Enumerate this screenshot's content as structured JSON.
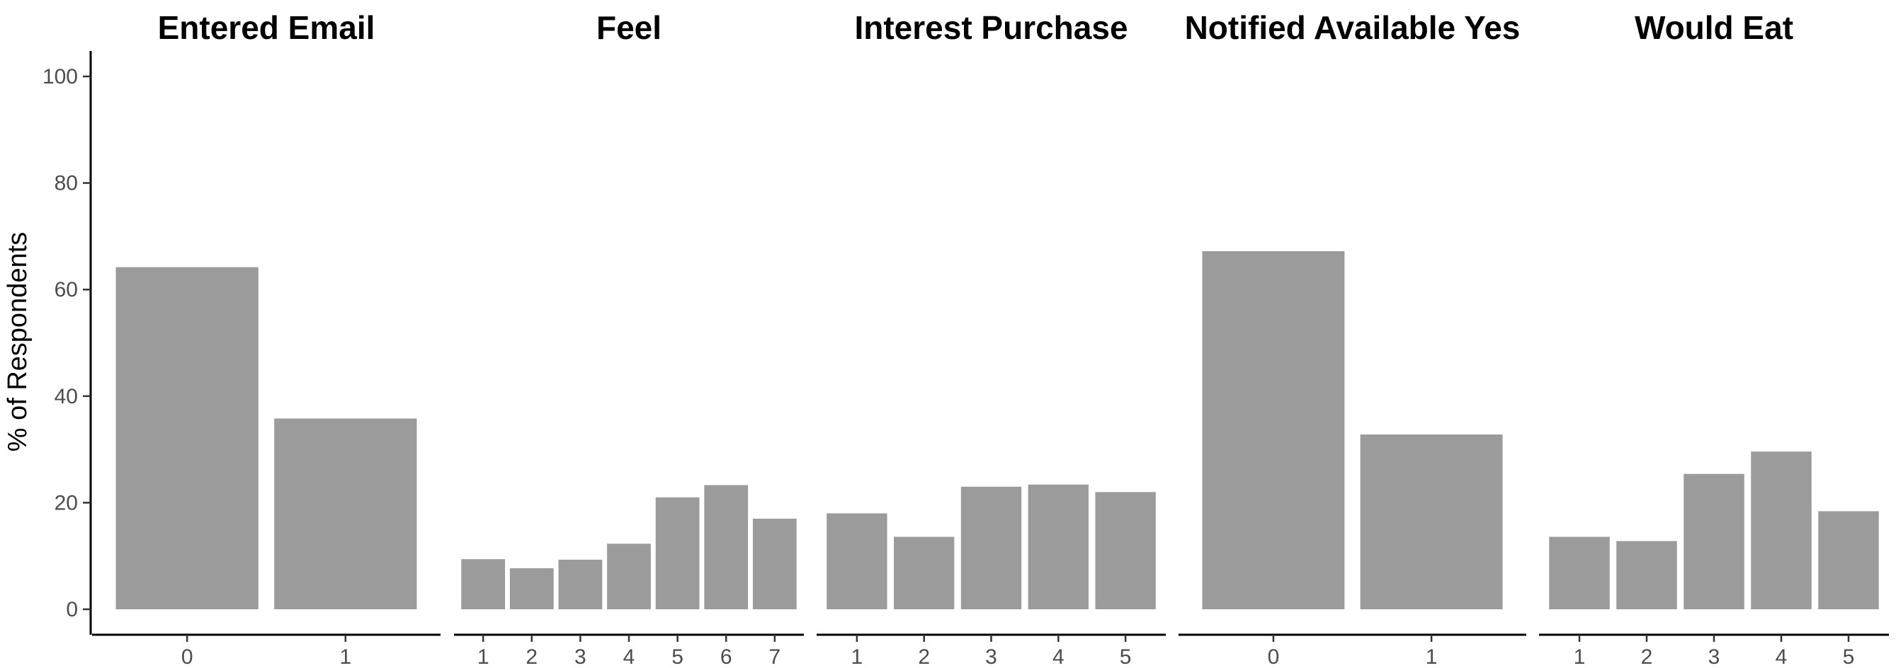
{
  "chart_data": {
    "type": "bar",
    "ylabel": "% of Respondents",
    "ylim": [
      0,
      100
    ],
    "y_ticks": [
      "0",
      "20",
      "40",
      "60",
      "80",
      "100"
    ],
    "bar_color": "#9b9b9b",
    "grid": false,
    "facets": [
      {
        "title": "Entered Email",
        "categories": [
          "0",
          "1"
        ],
        "values": [
          64.2,
          35.8
        ]
      },
      {
        "title": "Feel",
        "categories": [
          "1",
          "2",
          "3",
          "4",
          "5",
          "6",
          "7"
        ],
        "values": [
          9.4,
          7.7,
          9.3,
          12.3,
          21.0,
          23.3,
          17.0
        ]
      },
      {
        "title": "Interest Purchase",
        "categories": [
          "1",
          "2",
          "3",
          "4",
          "5"
        ],
        "values": [
          18.0,
          13.6,
          23.0,
          23.4,
          22.0
        ]
      },
      {
        "title": "Notified Available Yes",
        "categories": [
          "0",
          "1"
        ],
        "values": [
          67.2,
          32.8
        ]
      },
      {
        "title": "Would Eat",
        "categories": [
          "1",
          "2",
          "3",
          "4",
          "5"
        ],
        "values": [
          13.6,
          12.8,
          25.4,
          29.6,
          18.4
        ]
      }
    ]
  }
}
